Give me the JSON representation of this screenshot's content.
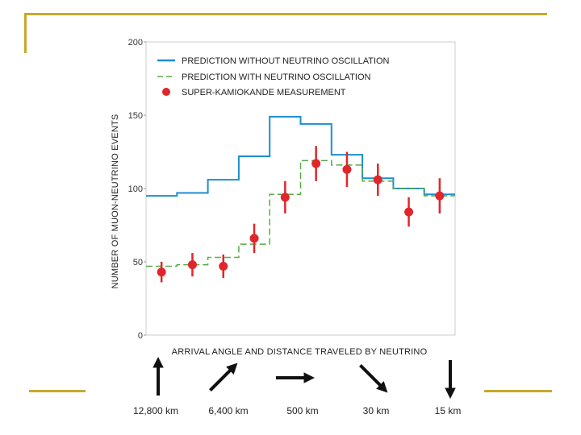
{
  "slide": {
    "accent_color": "#c8a82a"
  },
  "chart_data": {
    "type": "line",
    "title": "",
    "xlabel": "ARRIVAL ANGLE AND DISTANCE TRAVELED BY NEUTRINO",
    "ylabel": "NUMBER OF MUON-NEUTRINO EVENTS",
    "ylim": [
      0,
      200
    ],
    "yticks": [
      0,
      50,
      100,
      150,
      200
    ],
    "ytick_labels": [
      "0",
      "50",
      "100",
      "150",
      "200"
    ],
    "legend_position": "top-left",
    "bins": 10,
    "series": [
      {
        "name": "PREDICTION WITHOUT NEUTRINO OSCILLATION",
        "style": "step",
        "color": "#1a8fd0",
        "values": [
          95,
          97,
          106,
          122,
          149,
          144,
          123,
          107,
          100,
          96
        ]
      },
      {
        "name": "PREDICTION WITH NEUTRINO OSCILLATION",
        "style": "dashed-step",
        "color": "#5aaa48",
        "values": [
          47,
          48,
          53,
          62,
          96,
          119,
          116,
          105,
          100,
          95
        ]
      },
      {
        "name": "SUPER-KAMIOKANDE MEASUREMENT",
        "style": "points-with-error",
        "color": "#e0262b",
        "values": [
          43,
          48,
          47,
          66,
          94,
          117,
          113,
          106,
          84,
          95
        ],
        "errors": [
          7,
          8,
          8,
          10,
          11,
          12,
          12,
          11,
          10,
          12
        ]
      }
    ],
    "directions": [
      {
        "label": "12,800 km",
        "arrow": "up-arrow-icon"
      },
      {
        "label": "6,400 km",
        "arrow": "up-right-arrow-icon"
      },
      {
        "label": "500 km",
        "arrow": "right-arrow-icon"
      },
      {
        "label": "30 km",
        "arrow": "down-right-arrow-icon"
      },
      {
        "label": "15 km",
        "arrow": "down-arrow-icon"
      }
    ]
  }
}
